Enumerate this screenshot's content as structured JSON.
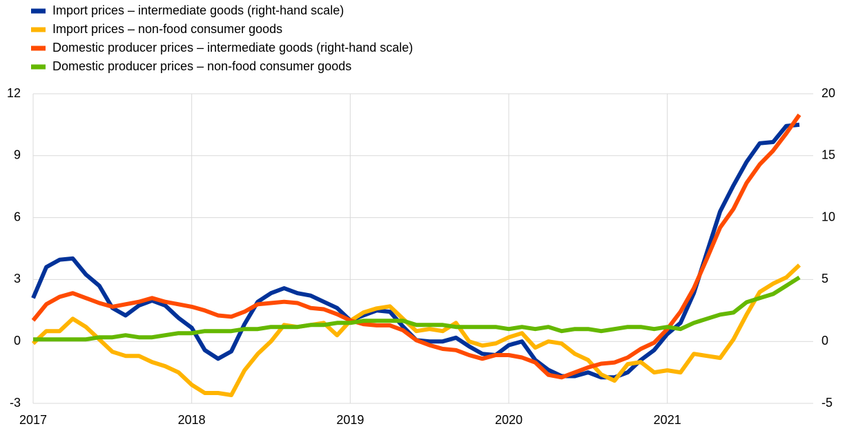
{
  "chart_data": {
    "type": "line",
    "x": [
      2017,
      2017.083,
      2017.167,
      2017.25,
      2017.333,
      2017.417,
      2017.5,
      2017.583,
      2017.667,
      2017.75,
      2017.833,
      2017.917,
      2018,
      2018.083,
      2018.167,
      2018.25,
      2018.333,
      2018.417,
      2018.5,
      2018.583,
      2018.667,
      2018.75,
      2018.833,
      2018.917,
      2019,
      2019.083,
      2019.167,
      2019.25,
      2019.333,
      2019.417,
      2019.5,
      2019.583,
      2019.667,
      2019.75,
      2019.833,
      2019.917,
      2020,
      2020.083,
      2020.167,
      2020.25,
      2020.333,
      2020.417,
      2020.5,
      2020.583,
      2020.667,
      2020.75,
      2020.833,
      2020.917,
      2021,
      2021.083,
      2021.167,
      2021.25,
      2021.333,
      2021.417,
      2021.5,
      2021.583,
      2021.667,
      2021.75,
      2021.833
    ],
    "xlim": [
      2017,
      2021.92
    ],
    "xticks": [
      2017,
      2018,
      2019,
      2020,
      2021
    ],
    "ylim": [
      -3,
      12
    ],
    "yticks": [
      -3,
      0,
      3,
      6,
      9,
      12
    ],
    "y2lim": [
      -5,
      20
    ],
    "y2ticks": [
      -5,
      0,
      5,
      10,
      15,
      20
    ],
    "grid": true,
    "legend": "top-left",
    "series": [
      {
        "name": "Import prices – intermediate goods (right-hand scale)",
        "color": "#003299",
        "axis": "y2",
        "values": [
          3.5,
          6.0,
          6.6,
          6.7,
          5.4,
          4.5,
          2.7,
          2.1,
          2.9,
          3.3,
          2.9,
          1.9,
          1.1,
          -0.7,
          -1.4,
          -0.8,
          1.4,
          3.2,
          3.9,
          4.3,
          3.9,
          3.7,
          3.2,
          2.7,
          1.7,
          2.1,
          2.5,
          2.4,
          1.2,
          0.1,
          0.0,
          0.0,
          0.3,
          -0.4,
          -1.0,
          -1.1,
          -0.3,
          0.0,
          -1.5,
          -2.3,
          -2.8,
          -2.8,
          -2.5,
          -2.9,
          -2.9,
          -2.5,
          -1.5,
          -0.7,
          0.6,
          1.5,
          3.9,
          7.2,
          10.5,
          12.6,
          14.5,
          16.0,
          16.1,
          17.4,
          17.5
        ]
      },
      {
        "name": "Import prices – non-food consumer goods",
        "color": "#ffb400",
        "values": [
          -0.1,
          0.5,
          0.5,
          1.1,
          0.7,
          0.1,
          -0.5,
          -0.7,
          -0.7,
          -1.0,
          -1.2,
          -1.5,
          -2.1,
          -2.5,
          -2.5,
          -2.6,
          -1.4,
          -0.6,
          0.0,
          0.8,
          0.7,
          0.8,
          0.9,
          0.3,
          1.0,
          1.4,
          1.6,
          1.7,
          1.1,
          0.5,
          0.6,
          0.5,
          0.9,
          0.0,
          -0.2,
          -0.1,
          0.2,
          0.4,
          -0.3,
          0.0,
          -0.1,
          -0.6,
          -0.9,
          -1.6,
          -1.9,
          -1.1,
          -1.0,
          -1.5,
          -1.4,
          -1.5,
          -0.6,
          -0.7,
          -0.8,
          0.1,
          1.3,
          2.4,
          2.8,
          3.1,
          3.7
        ]
      },
      {
        "name": "Domestic producer prices – intermediate goods (right-hand scale)",
        "color": "#ff4b00",
        "axis": "y2",
        "values": [
          1.7,
          3.0,
          3.6,
          3.9,
          3.5,
          3.1,
          2.8,
          3.0,
          3.2,
          3.5,
          3.2,
          3.0,
          2.8,
          2.5,
          2.1,
          2.0,
          2.4,
          3.0,
          3.1,
          3.2,
          3.1,
          2.7,
          2.6,
          2.2,
          1.7,
          1.4,
          1.3,
          1.3,
          0.9,
          0.1,
          -0.3,
          -0.6,
          -0.7,
          -1.1,
          -1.4,
          -1.1,
          -1.1,
          -1.3,
          -1.7,
          -2.7,
          -2.9,
          -2.5,
          -2.1,
          -1.8,
          -1.7,
          -1.3,
          -0.6,
          -0.1,
          1.0,
          2.4,
          4.3,
          6.7,
          9.2,
          10.7,
          12.8,
          14.3,
          15.4,
          16.8,
          18.3
        ]
      },
      {
        "name": "Domestic producer prices – non-food consumer goods",
        "color": "#65b800",
        "values": [
          0.1,
          0.1,
          0.1,
          0.1,
          0.1,
          0.2,
          0.2,
          0.3,
          0.2,
          0.2,
          0.3,
          0.4,
          0.4,
          0.5,
          0.5,
          0.5,
          0.6,
          0.6,
          0.7,
          0.7,
          0.7,
          0.8,
          0.8,
          0.9,
          0.9,
          1.0,
          1.0,
          1.0,
          1.0,
          0.8,
          0.8,
          0.8,
          0.7,
          0.7,
          0.7,
          0.7,
          0.6,
          0.7,
          0.6,
          0.7,
          0.5,
          0.6,
          0.6,
          0.5,
          0.6,
          0.7,
          0.7,
          0.6,
          0.7,
          0.6,
          0.9,
          1.1,
          1.3,
          1.4,
          1.9,
          2.1,
          2.3,
          2.7,
          3.1
        ]
      }
    ]
  }
}
